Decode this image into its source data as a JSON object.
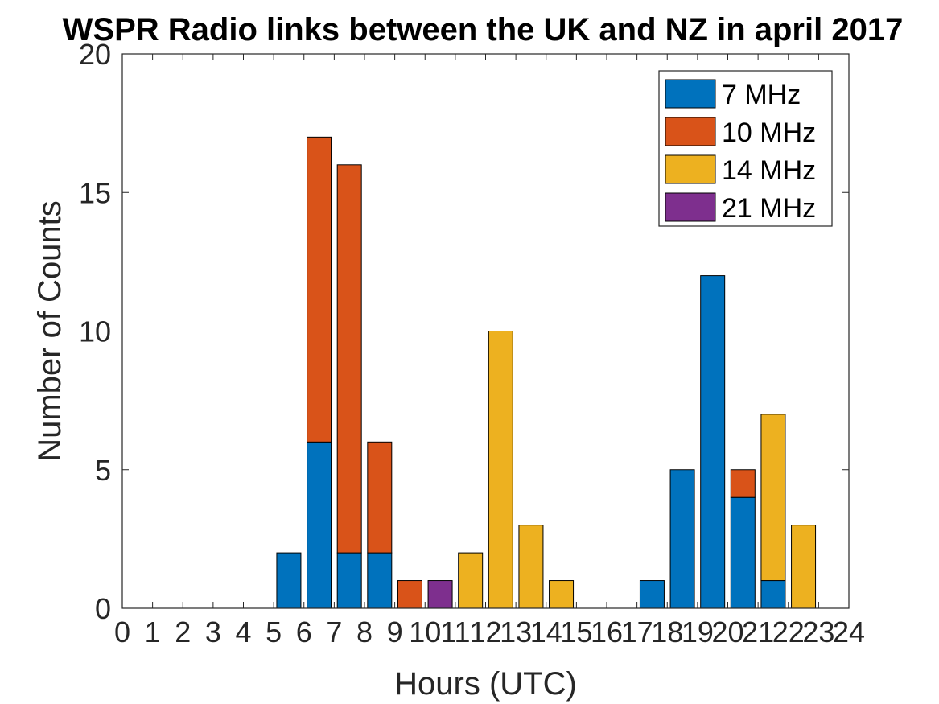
{
  "chart_data": {
    "type": "bar",
    "stacked": true,
    "title": "WSPR Radio links between the UK and NZ in april 2017",
    "xlabel": "Hours (UTC)",
    "ylabel": "Number of Counts",
    "xlim": [
      0,
      24
    ],
    "ylim": [
      0,
      20
    ],
    "x_ticks": [
      0,
      1,
      2,
      3,
      4,
      5,
      6,
      7,
      8,
      9,
      10,
      11,
      12,
      13,
      14,
      15,
      16,
      17,
      18,
      19,
      20,
      21,
      22,
      23,
      24
    ],
    "y_ticks": [
      0,
      5,
      10,
      15,
      20
    ],
    "grid": false,
    "legend_position": "top-right",
    "x": [
      0,
      1,
      2,
      3,
      4,
      5,
      6,
      7,
      8,
      9,
      10,
      11,
      12,
      13,
      14,
      15,
      16,
      17,
      18,
      19,
      20,
      21,
      22,
      23
    ],
    "series": [
      {
        "name": "7 MHz",
        "color": "#0072BD",
        "values": [
          0,
          0,
          0,
          0,
          0,
          2,
          6,
          2,
          2,
          0,
          0,
          0,
          0,
          0,
          0,
          0,
          0,
          1,
          5,
          12,
          4,
          1,
          0,
          0
        ]
      },
      {
        "name": "10 MHz",
        "color": "#D95319",
        "values": [
          0,
          0,
          0,
          0,
          0,
          0,
          11,
          14,
          4,
          1,
          0,
          0,
          0,
          0,
          0,
          0,
          0,
          0,
          0,
          0,
          1,
          0,
          0,
          0
        ]
      },
      {
        "name": "14 MHz",
        "color": "#EDB120",
        "values": [
          0,
          0,
          0,
          0,
          0,
          0,
          0,
          0,
          0,
          0,
          0,
          2,
          10,
          3,
          1,
          0,
          0,
          0,
          0,
          0,
          0,
          6,
          3,
          0
        ]
      },
      {
        "name": "21 MHz",
        "color": "#7E2F8E",
        "values": [
          0,
          0,
          0,
          0,
          0,
          0,
          0,
          0,
          0,
          0,
          1,
          0,
          0,
          0,
          0,
          0,
          0,
          0,
          0,
          0,
          0,
          0,
          0,
          0
        ]
      }
    ]
  }
}
